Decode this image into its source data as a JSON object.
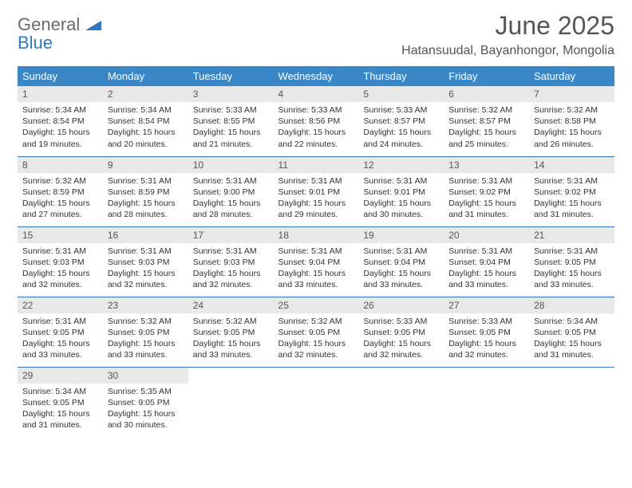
{
  "brand": {
    "word1": "General",
    "word2": "Blue"
  },
  "title": "June 2025",
  "location": "Hatansuudal, Bayanhongor, Mongolia",
  "colors": {
    "header_bg": "#3a87c8",
    "header_text": "#ffffff",
    "daynum_bg": "#e8e8e8",
    "rule": "#2f78c0",
    "brand_gray": "#6a6a6a",
    "brand_blue": "#2f78c0"
  },
  "weekdays": [
    "Sunday",
    "Monday",
    "Tuesday",
    "Wednesday",
    "Thursday",
    "Friday",
    "Saturday"
  ],
  "days": [
    {
      "n": 1,
      "sr": "5:34 AM",
      "ss": "8:54 PM",
      "dl": "15 hours and 19 minutes."
    },
    {
      "n": 2,
      "sr": "5:34 AM",
      "ss": "8:54 PM",
      "dl": "15 hours and 20 minutes."
    },
    {
      "n": 3,
      "sr": "5:33 AM",
      "ss": "8:55 PM",
      "dl": "15 hours and 21 minutes."
    },
    {
      "n": 4,
      "sr": "5:33 AM",
      "ss": "8:56 PM",
      "dl": "15 hours and 22 minutes."
    },
    {
      "n": 5,
      "sr": "5:33 AM",
      "ss": "8:57 PM",
      "dl": "15 hours and 24 minutes."
    },
    {
      "n": 6,
      "sr": "5:32 AM",
      "ss": "8:57 PM",
      "dl": "15 hours and 25 minutes."
    },
    {
      "n": 7,
      "sr": "5:32 AM",
      "ss": "8:58 PM",
      "dl": "15 hours and 26 minutes."
    },
    {
      "n": 8,
      "sr": "5:32 AM",
      "ss": "8:59 PM",
      "dl": "15 hours and 27 minutes."
    },
    {
      "n": 9,
      "sr": "5:31 AM",
      "ss": "8:59 PM",
      "dl": "15 hours and 28 minutes."
    },
    {
      "n": 10,
      "sr": "5:31 AM",
      "ss": "9:00 PM",
      "dl": "15 hours and 28 minutes."
    },
    {
      "n": 11,
      "sr": "5:31 AM",
      "ss": "9:01 PM",
      "dl": "15 hours and 29 minutes."
    },
    {
      "n": 12,
      "sr": "5:31 AM",
      "ss": "9:01 PM",
      "dl": "15 hours and 30 minutes."
    },
    {
      "n": 13,
      "sr": "5:31 AM",
      "ss": "9:02 PM",
      "dl": "15 hours and 31 minutes."
    },
    {
      "n": 14,
      "sr": "5:31 AM",
      "ss": "9:02 PM",
      "dl": "15 hours and 31 minutes."
    },
    {
      "n": 15,
      "sr": "5:31 AM",
      "ss": "9:03 PM",
      "dl": "15 hours and 32 minutes."
    },
    {
      "n": 16,
      "sr": "5:31 AM",
      "ss": "9:03 PM",
      "dl": "15 hours and 32 minutes."
    },
    {
      "n": 17,
      "sr": "5:31 AM",
      "ss": "9:03 PM",
      "dl": "15 hours and 32 minutes."
    },
    {
      "n": 18,
      "sr": "5:31 AM",
      "ss": "9:04 PM",
      "dl": "15 hours and 33 minutes."
    },
    {
      "n": 19,
      "sr": "5:31 AM",
      "ss": "9:04 PM",
      "dl": "15 hours and 33 minutes."
    },
    {
      "n": 20,
      "sr": "5:31 AM",
      "ss": "9:04 PM",
      "dl": "15 hours and 33 minutes."
    },
    {
      "n": 21,
      "sr": "5:31 AM",
      "ss": "9:05 PM",
      "dl": "15 hours and 33 minutes."
    },
    {
      "n": 22,
      "sr": "5:31 AM",
      "ss": "9:05 PM",
      "dl": "15 hours and 33 minutes."
    },
    {
      "n": 23,
      "sr": "5:32 AM",
      "ss": "9:05 PM",
      "dl": "15 hours and 33 minutes."
    },
    {
      "n": 24,
      "sr": "5:32 AM",
      "ss": "9:05 PM",
      "dl": "15 hours and 33 minutes."
    },
    {
      "n": 25,
      "sr": "5:32 AM",
      "ss": "9:05 PM",
      "dl": "15 hours and 32 minutes."
    },
    {
      "n": 26,
      "sr": "5:33 AM",
      "ss": "9:05 PM",
      "dl": "15 hours and 32 minutes."
    },
    {
      "n": 27,
      "sr": "5:33 AM",
      "ss": "9:05 PM",
      "dl": "15 hours and 32 minutes."
    },
    {
      "n": 28,
      "sr": "5:34 AM",
      "ss": "9:05 PM",
      "dl": "15 hours and 31 minutes."
    },
    {
      "n": 29,
      "sr": "5:34 AM",
      "ss": "9:05 PM",
      "dl": "15 hours and 31 minutes."
    },
    {
      "n": 30,
      "sr": "5:35 AM",
      "ss": "9:05 PM",
      "dl": "15 hours and 30 minutes."
    }
  ],
  "labels": {
    "sunrise": "Sunrise:",
    "sunset": "Sunset:",
    "daylight": "Daylight:"
  }
}
